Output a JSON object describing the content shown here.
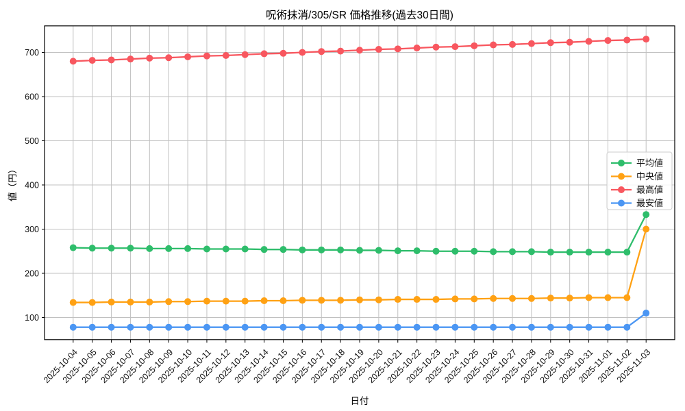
{
  "title": "呪術抹消/305/SR 価格推移(過去30日間)",
  "chart_data": {
    "type": "line",
    "title": "呪術抹消/305/SR 価格推移(過去30日間)",
    "xlabel": "日付",
    "ylabel": "値（円）",
    "x": [
      "2025-10-04",
      "2025-10-05",
      "2025-10-06",
      "2025-10-07",
      "2025-10-08",
      "2025-10-09",
      "2025-10-10",
      "2025-10-11",
      "2025-10-12",
      "2025-10-13",
      "2025-10-14",
      "2025-10-15",
      "2025-10-16",
      "2025-10-17",
      "2025-10-18",
      "2025-10-19",
      "2025-10-20",
      "2025-10-21",
      "2025-10-22",
      "2025-10-23",
      "2025-10-24",
      "2025-10-25",
      "2025-10-26",
      "2025-10-27",
      "2025-10-28",
      "2025-10-29",
      "2025-10-30",
      "2025-10-31",
      "2025-11-01",
      "2025-11-02",
      "2025-11-03"
    ],
    "series": [
      {
        "key": "average",
        "name": "平均値",
        "color": "#2ebd6b",
        "values": [
          258,
          257,
          257,
          257,
          256,
          256,
          256,
          255,
          255,
          255,
          254,
          254,
          253,
          253,
          253,
          252,
          252,
          251,
          251,
          250,
          250,
          250,
          249,
          249,
          249,
          248,
          248,
          248,
          248,
          248,
          333
        ]
      },
      {
        "key": "median",
        "name": "中央値",
        "color": "#ffa113",
        "values": [
          134,
          134,
          135,
          135,
          135,
          136,
          136,
          137,
          137,
          137,
          138,
          138,
          139,
          139,
          139,
          140,
          140,
          141,
          141,
          141,
          142,
          142,
          143,
          143,
          143,
          144,
          144,
          145,
          145,
          145,
          300
        ]
      },
      {
        "key": "highest",
        "name": "最高値",
        "color": "#f8575f",
        "values": [
          680,
          682,
          683,
          685,
          687,
          688,
          690,
          692,
          693,
          695,
          697,
          698,
          700,
          702,
          703,
          705,
          707,
          708,
          710,
          712,
          713,
          715,
          717,
          718,
          720,
          722,
          723,
          725,
          727,
          728,
          730
        ]
      },
      {
        "key": "lowest",
        "name": "最安値",
        "color": "#4b96f3",
        "values": [
          78,
          78,
          78,
          78,
          78,
          78,
          78,
          78,
          78,
          78,
          78,
          78,
          78,
          78,
          78,
          78,
          78,
          78,
          78,
          78,
          78,
          78,
          78,
          78,
          78,
          78,
          78,
          78,
          78,
          78,
          110
        ]
      }
    ],
    "yticks": [
      100,
      200,
      300,
      400,
      500,
      600,
      700
    ],
    "ylim": [
      45,
      763
    ],
    "grid": true,
    "grid_color": "#c0c0c0",
    "legend_position": "right",
    "background": "#ffffff"
  }
}
